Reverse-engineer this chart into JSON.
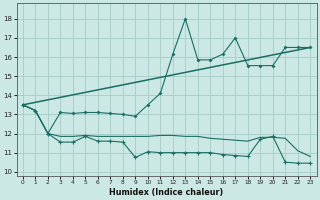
{
  "xlabel": "Humidex (Indice chaleur)",
  "bg_color": "#cce8e4",
  "grid_color": "#aacfca",
  "line_color": "#1a6e64",
  "xlim": [
    -0.5,
    23.5
  ],
  "ylim": [
    9.8,
    18.8
  ],
  "yticks": [
    10,
    11,
    12,
    13,
    14,
    15,
    16,
    17,
    18
  ],
  "xticks": [
    0,
    1,
    2,
    3,
    4,
    5,
    6,
    7,
    8,
    9,
    10,
    11,
    12,
    13,
    14,
    15,
    16,
    17,
    18,
    19,
    20,
    21,
    22,
    23
  ],
  "line_jagged_x": [
    0,
    1,
    2,
    3,
    4,
    5,
    6,
    7,
    8,
    9,
    10,
    11,
    12,
    13,
    14,
    15,
    16,
    17,
    18,
    19,
    20,
    21,
    22,
    23
  ],
  "line_jagged_y": [
    13.5,
    13.2,
    12.0,
    13.1,
    13.05,
    13.1,
    13.1,
    13.05,
    13.0,
    12.9,
    13.5,
    14.1,
    16.15,
    18.0,
    15.85,
    15.85,
    16.15,
    17.0,
    15.55,
    15.55,
    15.55,
    16.5,
    16.5,
    16.5
  ],
  "line_trend_x": [
    0,
    23
  ],
  "line_trend_y": [
    13.5,
    16.5
  ],
  "line_mid_x": [
    0,
    1,
    2,
    3,
    4,
    5,
    6,
    7,
    8,
    9,
    10,
    11,
    12,
    13,
    14,
    15,
    16,
    17,
    18,
    19,
    20,
    21,
    22,
    23
  ],
  "line_mid_y": [
    13.5,
    13.2,
    12.0,
    11.85,
    11.85,
    11.9,
    11.85,
    11.85,
    11.85,
    11.85,
    11.85,
    11.9,
    11.9,
    11.85,
    11.85,
    11.75,
    11.7,
    11.65,
    11.6,
    11.8,
    11.8,
    11.75,
    11.1,
    10.8
  ],
  "line_bot_x": [
    0,
    1,
    2,
    3,
    4,
    5,
    6,
    7,
    8,
    9,
    10,
    11,
    12,
    13,
    14,
    15,
    16,
    17,
    18,
    19,
    20,
    21,
    22,
    23
  ],
  "line_bot_y": [
    13.5,
    13.2,
    12.0,
    11.55,
    11.55,
    11.85,
    11.6,
    11.6,
    11.55,
    10.75,
    11.05,
    11.0,
    11.0,
    11.0,
    11.0,
    11.0,
    10.9,
    10.85,
    10.8,
    11.7,
    11.85,
    10.5,
    10.45,
    10.45
  ]
}
